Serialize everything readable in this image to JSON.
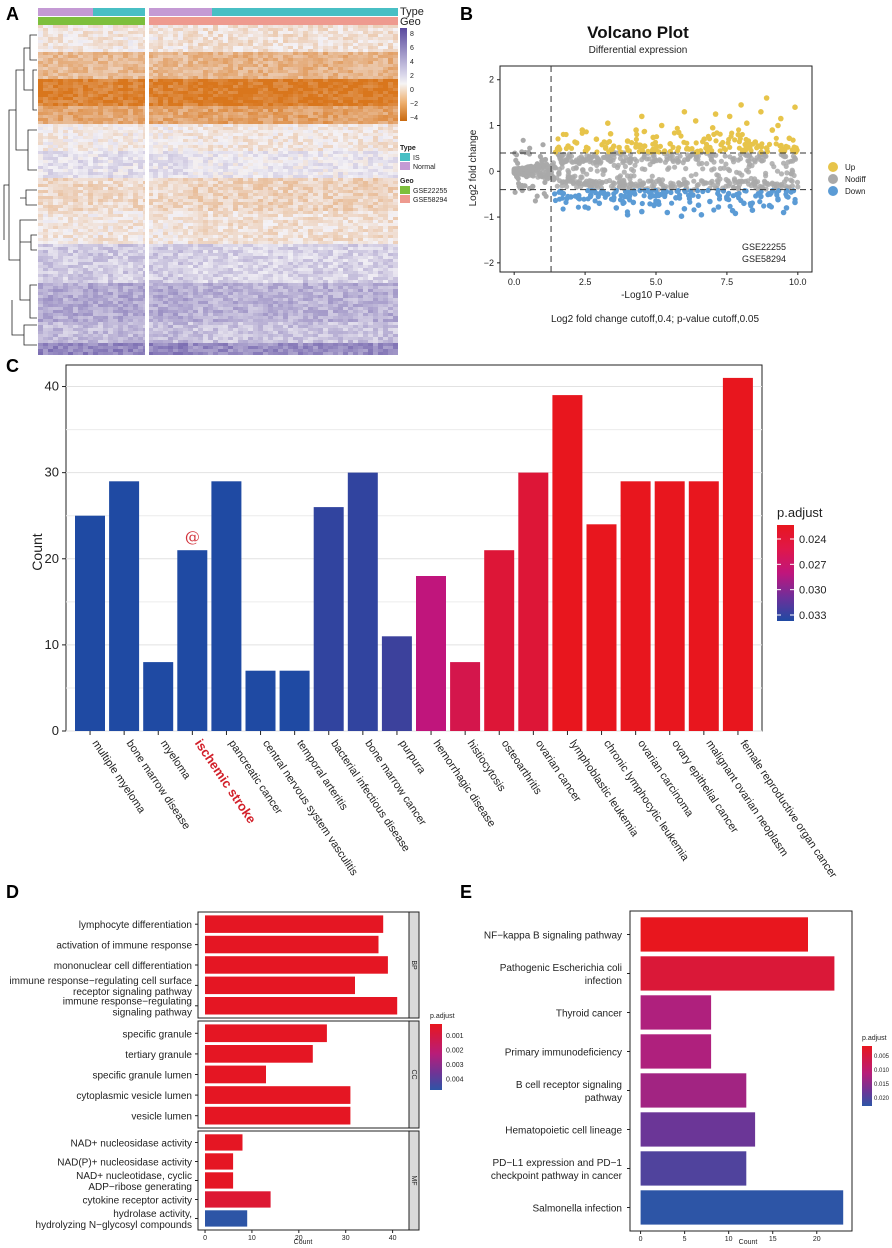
{
  "panels": {
    "a": "A",
    "b": "B",
    "c": "C",
    "d": "D",
    "e": "E"
  },
  "heatmap": {
    "type_label": "Type",
    "geo_label": "Geo",
    "colorbar_ticks": [
      "8",
      "6",
      "4",
      "2",
      "0",
      "−2",
      "−4"
    ],
    "legend_type_title": "Type",
    "legend_type_items": [
      "IS",
      "Normal"
    ],
    "legend_geo_title": "Geo",
    "legend_geo_items": [
      "GSE22255",
      "GSE58294"
    ],
    "colors": {
      "is": "#48bfc4",
      "normal": "#c49ad4",
      "gse22255": "#7dbf3c",
      "gse58294": "#ee9a8f",
      "high": "#6a5aa8",
      "mid": "#f4f2f6",
      "low": "#d9761c"
    }
  },
  "chart_data": [
    {
      "type": "scatter",
      "id": "volcano",
      "title": "Volcano Plot",
      "subtitle": "Differential expression",
      "xlabel": "-Log10 P-value",
      "ylabel": "Log2 fold change",
      "xlim": [
        -0.5,
        10.5
      ],
      "ylim": [
        -2.2,
        2.3
      ],
      "xticks": [
        0.0,
        2.5,
        5.0,
        7.5,
        10.0
      ],
      "xtick_labels": [
        "0.0",
        "2.5",
        "5.0",
        "7.5",
        "10.0"
      ],
      "yticks": [
        -2,
        -1,
        0,
        1,
        2
      ],
      "ytick_labels": [
        "−2",
        "−1",
        "0",
        "1",
        "2"
      ],
      "hlines": [
        0.4,
        -0.4
      ],
      "vline": 1.3,
      "legend": [
        "Up",
        "Nodiff",
        "Down"
      ],
      "legend_colors": [
        "#e7c44a",
        "#a9a9a9",
        "#5b9bd5"
      ],
      "annotation": [
        "GSE22255",
        "GSE58294"
      ],
      "caption": "Log2 fold change cutoff,0.4; p-value cutoff,0.05",
      "up": [
        [
          1.6,
          0.48
        ],
        [
          1.9,
          0.55
        ],
        [
          2.2,
          0.62
        ],
        [
          2.6,
          0.5
        ],
        [
          2.9,
          0.7
        ],
        [
          3.1,
          0.58
        ],
        [
          3.4,
          0.82
        ],
        [
          3.7,
          0.52
        ],
        [
          4.0,
          0.66
        ],
        [
          4.3,
          0.9
        ],
        [
          4.6,
          0.55
        ],
        [
          4.9,
          0.74
        ],
        [
          5.2,
          1.0
        ],
        [
          5.5,
          0.6
        ],
        [
          5.8,
          0.85
        ],
        [
          6.1,
          0.5
        ],
        [
          6.4,
          1.1
        ],
        [
          6.7,
          0.7
        ],
        [
          7.0,
          0.95
        ],
        [
          7.3,
          0.58
        ],
        [
          7.6,
          1.2
        ],
        [
          7.9,
          0.8
        ],
        [
          8.2,
          1.05
        ],
        [
          8.5,
          0.64
        ],
        [
          8.7,
          1.3
        ],
        [
          8.9,
          1.6
        ],
        [
          9.1,
          0.9
        ],
        [
          9.4,
          1.15
        ],
        [
          9.7,
          0.72
        ],
        [
          9.9,
          1.4
        ],
        [
          2.4,
          0.9
        ],
        [
          3.3,
          1.05
        ],
        [
          4.5,
          1.2
        ],
        [
          6.0,
          1.3
        ],
        [
          7.1,
          1.25
        ],
        [
          8.0,
          1.45
        ],
        [
          9.3,
          1.0
        ],
        [
          5.0,
          0.5
        ],
        [
          6.9,
          0.52
        ],
        [
          8.6,
          0.55
        ]
      ],
      "down": [
        [
          1.7,
          -0.48
        ],
        [
          2.0,
          -0.56
        ],
        [
          2.3,
          -0.6
        ],
        [
          2.7,
          -0.52
        ],
        [
          3.0,
          -0.7
        ],
        [
          3.3,
          -0.5
        ],
        [
          3.6,
          -0.8
        ],
        [
          3.9,
          -0.55
        ],
        [
          4.2,
          -0.68
        ],
        [
          4.5,
          -0.88
        ],
        [
          4.8,
          -0.56
        ],
        [
          5.1,
          -0.72
        ],
        [
          5.4,
          -0.9
        ],
        [
          5.7,
          -0.58
        ],
        [
          6.0,
          -0.82
        ],
        [
          6.3,
          -0.52
        ],
        [
          6.6,
          -0.95
        ],
        [
          6.9,
          -0.66
        ],
        [
          7.2,
          -0.78
        ],
        [
          7.5,
          -0.6
        ],
        [
          7.8,
          -0.92
        ],
        [
          8.1,
          -0.7
        ],
        [
          8.4,
          -0.85
        ],
        [
          8.7,
          -0.55
        ],
        [
          9.0,
          -0.75
        ],
        [
          9.3,
          -0.62
        ],
        [
          9.6,
          -0.8
        ],
        [
          9.9,
          -0.68
        ],
        [
          2.5,
          -0.78
        ],
        [
          4.0,
          -0.95
        ],
        [
          5.9,
          -0.98
        ],
        [
          7.7,
          -0.86
        ],
        [
          9.5,
          -0.9
        ],
        [
          3.5,
          -0.62
        ],
        [
          6.5,
          -0.74
        ]
      ]
    },
    {
      "type": "bar",
      "id": "disease",
      "ylabel": "Count",
      "ylim": [
        0,
        42.5
      ],
      "yticks": [
        0,
        10,
        20,
        30,
        40
      ],
      "categories": [
        "multiple myeloma",
        "bone marrow disease",
        "myeloma",
        "ischemic stroke",
        "pancreatic cancer",
        "central nervous system vasculitis",
        "temporal arteritis",
        "bacterial infectious disease",
        "bone marrow cancer",
        "purpura",
        "hemorrhagic disease",
        "histiocytosis",
        "osteoarthritis",
        "ovarian cancer",
        "lymphoblastic leukemia",
        "chronic lymphocytic leukemia",
        "ovarian carcinoma",
        "ovary epithelial cancer",
        "malignant ovarian neoplasm",
        "female reproductive organ cancer"
      ],
      "values": [
        25,
        29,
        8,
        21,
        29,
        7,
        7,
        26,
        30,
        11,
        18,
        8,
        21,
        30,
        39,
        24,
        29,
        29,
        29,
        41
      ],
      "padjust": [
        0.0338,
        0.0338,
        0.0338,
        0.0338,
        0.0338,
        0.033,
        0.033,
        0.0325,
        0.0325,
        0.0322,
        0.0285,
        0.0262,
        0.0252,
        0.0252,
        0.0235,
        0.0235,
        0.0235,
        0.0235,
        0.0235,
        0.0235
      ],
      "highlight": "ischemic stroke",
      "highlight_mark": "@",
      "legend_title": "p.adjust",
      "legend_ticks": [
        "0.024",
        "0.027",
        "0.030",
        "0.033"
      ],
      "legend_values": [
        0.024,
        0.027,
        0.03,
        0.033
      ],
      "color_low": "#e8161e",
      "color_mid": "#c0157c",
      "color_high": "#1f4aa3"
    },
    {
      "type": "bar",
      "id": "go",
      "orientation": "horizontal",
      "xlabel": "Count",
      "xlim": [
        -1.5,
        43.5
      ],
      "xticks": [
        0,
        10,
        20,
        30,
        40
      ],
      "groups": [
        {
          "label": "BP",
          "items": [
            {
              "term": [
                "lymphocyte differentiation"
              ],
              "count": 38,
              "padjust": 0.0005
            },
            {
              "term": [
                "activation of immune response"
              ],
              "count": 37,
              "padjust": 0.0005
            },
            {
              "term": [
                "mononuclear cell differentiation"
              ],
              "count": 39,
              "padjust": 0.0005
            },
            {
              "term": [
                "immune response−regulating cell surface",
                "receptor signaling pathway"
              ],
              "count": 32,
              "padjust": 0.0005
            },
            {
              "term": [
                "immune response−regulating",
                "signaling pathway"
              ],
              "count": 41,
              "padjust": 0.0005
            }
          ]
        },
        {
          "label": "CC",
          "items": [
            {
              "term": [
                "specific granule"
              ],
              "count": 26,
              "padjust": 0.0005
            },
            {
              "term": [
                "tertiary granule"
              ],
              "count": 23,
              "padjust": 0.0005
            },
            {
              "term": [
                "specific granule lumen"
              ],
              "count": 13,
              "padjust": 0.0005
            },
            {
              "term": [
                "cytoplasmic vesicle lumen"
              ],
              "count": 31,
              "padjust": 0.0005
            },
            {
              "term": [
                "vesicle lumen"
              ],
              "count": 31,
              "padjust": 0.0005
            }
          ]
        },
        {
          "label": "MF",
          "items": [
            {
              "term": [
                "NAD+ nucleosidase activity"
              ],
              "count": 8,
              "padjust": 0.0005
            },
            {
              "term": [
                "NAD(P)+ nucleosidase activity"
              ],
              "count": 6,
              "padjust": 0.0005
            },
            {
              "term": [
                "NAD+ nucleotidase, cyclic",
                "ADP−ribose generating"
              ],
              "count": 6,
              "padjust": 0.0005
            },
            {
              "term": [
                "cytokine receptor activity"
              ],
              "count": 14,
              "padjust": 0.0008
            },
            {
              "term": [
                "hydrolase activity,",
                "hydrolyzing N−glycosyl compounds"
              ],
              "count": 9,
              "padjust": 0.0043
            }
          ]
        }
      ],
      "legend_title": "p.adjust",
      "legend_ticks": [
        "0.001",
        "0.002",
        "0.003",
        "0.004"
      ],
      "legend_values": [
        0.001,
        0.002,
        0.003,
        0.004
      ],
      "color_low": "#e8161e",
      "color_high": "#2d55a6"
    },
    {
      "type": "bar",
      "id": "kegg",
      "orientation": "horizontal",
      "xlabel": "Count",
      "xlim": [
        -1.2,
        24.0
      ],
      "xticks": [
        0,
        5,
        10,
        15,
        20
      ],
      "items": [
        {
          "term": [
            "NF−kappa B signaling pathway"
          ],
          "count": 19,
          "padjust": 0.0003
        },
        {
          "term": [
            "Pathogenic Escherichia coli",
            "infection"
          ],
          "count": 22,
          "padjust": 0.0045
        },
        {
          "term": [
            "Thyroid cancer"
          ],
          "count": 8,
          "padjust": 0.0115
        },
        {
          "term": [
            "Primary immunodeficiency"
          ],
          "count": 8,
          "padjust": 0.0115
        },
        {
          "term": [
            "B cell receptor signaling",
            "pathway"
          ],
          "count": 12,
          "padjust": 0.0125
        },
        {
          "term": [
            "Hematopoietic cell lineage"
          ],
          "count": 13,
          "padjust": 0.0168
        },
        {
          "term": [
            "PD−L1 expression and PD−1",
            "checkpoint pathway in cancer"
          ],
          "count": 12,
          "padjust": 0.0188
        },
        {
          "term": [
            "Salmonella infection"
          ],
          "count": 23,
          "padjust": 0.0222
        }
      ],
      "legend_title": "p.adjust",
      "legend_ticks": [
        "0.005",
        "0.010",
        "0.015",
        "0.020"
      ],
      "legend_values": [
        0.005,
        0.01,
        0.015,
        0.02
      ],
      "color_low": "#e8161e",
      "color_high": "#2d55a6"
    }
  ]
}
